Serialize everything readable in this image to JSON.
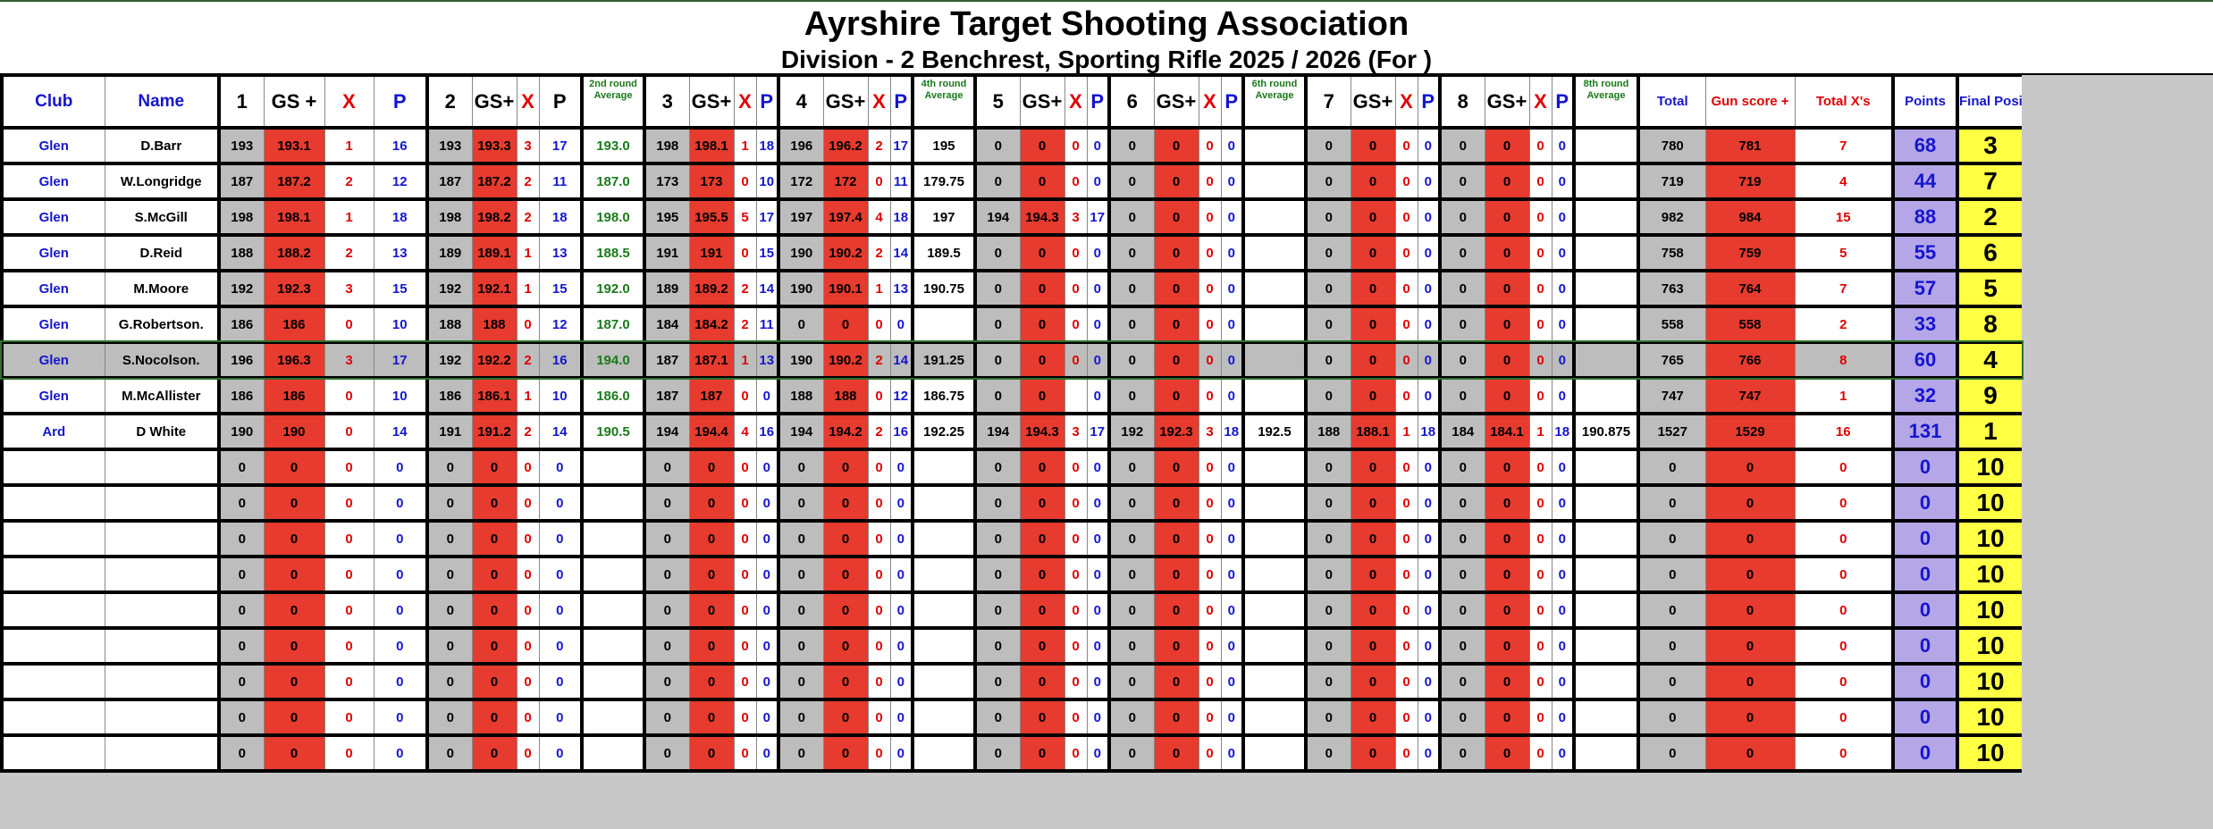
{
  "title": "Ayrshire Target Shooting Association",
  "subtitle": "Division - 2  Benchrest,  Sporting Rifle  2025 / 2026   (For   )",
  "headers": {
    "club": "Club",
    "name": "Name",
    "r1": "1",
    "gs1": "GS +",
    "x1": "X",
    "p1": "P",
    "r2": "2",
    "gs2": "GS+",
    "x2": "X",
    "p2": "P",
    "avg2": "2nd round Average",
    "r3": "3",
    "gs3": "GS+",
    "x3": "X",
    "p3": "P",
    "r4": "4",
    "gs4": "GS+",
    "x4": "X",
    "p4": "P",
    "avg4": "4th round Average",
    "r5": "5",
    "gs5": "GS+",
    "x5": "X",
    "p5": "P",
    "r6": "6",
    "gs6": "GS+",
    "x6": "X",
    "p6": "P",
    "avg6": "6th round Average",
    "r7": "7",
    "gs7": "GS+",
    "x7": "X",
    "p7": "P",
    "r8": "8",
    "gs8": "GS+",
    "x8": "X",
    "p8": "P",
    "avg8": "8th round Average",
    "total": "Total",
    "gun": "Gun score +",
    "totx": "Total X's",
    "points": "Points",
    "final": "Final Position"
  },
  "rows": [
    [
      "Glen",
      "D.Barr",
      "193",
      "193.1",
      "1",
      "16",
      "193",
      "193.3",
      "3",
      "17",
      "193.0",
      "198",
      "198.1",
      "1",
      "18",
      "196",
      "196.2",
      "2",
      "17",
      "195",
      "0",
      "0",
      "0",
      "0",
      "0",
      "0",
      "0",
      "0",
      "",
      "0",
      "0",
      "0",
      "0",
      "0",
      "0",
      "0",
      "0",
      "",
      "780",
      "781",
      "7",
      "68",
      "3"
    ],
    [
      "Glen",
      "W.Longridge",
      "187",
      "187.2",
      "2",
      "12",
      "187",
      "187.2",
      "2",
      "11",
      "187.0",
      "173",
      "173",
      "0",
      "10",
      "172",
      "172",
      "0",
      "11",
      "179.75",
      "0",
      "0",
      "0",
      "0",
      "0",
      "0",
      "0",
      "0",
      "",
      "0",
      "0",
      "0",
      "0",
      "0",
      "0",
      "0",
      "0",
      "",
      "719",
      "719",
      "4",
      "44",
      "7"
    ],
    [
      "Glen",
      "S.McGill",
      "198",
      "198.1",
      "1",
      "18",
      "198",
      "198.2",
      "2",
      "18",
      "198.0",
      "195",
      "195.5",
      "5",
      "17",
      "197",
      "197.4",
      "4",
      "18",
      "197",
      "194",
      "194.3",
      "3",
      "17",
      "0",
      "0",
      "0",
      "0",
      "",
      "0",
      "0",
      "0",
      "0",
      "0",
      "0",
      "0",
      "0",
      "",
      "982",
      "984",
      "15",
      "88",
      "2"
    ],
    [
      "Glen",
      "D.Reid",
      "188",
      "188.2",
      "2",
      "13",
      "189",
      "189.1",
      "1",
      "13",
      "188.5",
      "191",
      "191",
      "0",
      "15",
      "190",
      "190.2",
      "2",
      "14",
      "189.5",
      "0",
      "0",
      "0",
      "0",
      "0",
      "0",
      "0",
      "0",
      "",
      "0",
      "0",
      "0",
      "0",
      "0",
      "0",
      "0",
      "0",
      "",
      "758",
      "759",
      "5",
      "55",
      "6"
    ],
    [
      "Glen",
      "M.Moore",
      "192",
      "192.3",
      "3",
      "15",
      "192",
      "192.1",
      "1",
      "15",
      "192.0",
      "189",
      "189.2",
      "2",
      "14",
      "190",
      "190.1",
      "1",
      "13",
      "190.75",
      "0",
      "0",
      "0",
      "0",
      "0",
      "0",
      "0",
      "0",
      "",
      "0",
      "0",
      "0",
      "0",
      "0",
      "0",
      "0",
      "0",
      "",
      "763",
      "764",
      "7",
      "57",
      "5"
    ],
    [
      "Glen",
      "G.Robertson.",
      "186",
      "186",
      "0",
      "10",
      "188",
      "188",
      "0",
      "12",
      "187.0",
      "184",
      "184.2",
      "2",
      "11",
      "0",
      "0",
      "0",
      "0",
      "",
      "0",
      "0",
      "0",
      "0",
      "0",
      "0",
      "0",
      "0",
      "",
      "0",
      "0",
      "0",
      "0",
      "0",
      "0",
      "0",
      "0",
      "",
      "558",
      "558",
      "2",
      "33",
      "8"
    ],
    [
      "Glen",
      "S.Nocolson.",
      "196",
      "196.3",
      "3",
      "17",
      "192",
      "192.2",
      "2",
      "16",
      "194.0",
      "187",
      "187.1",
      "1",
      "13",
      "190",
      "190.2",
      "2",
      "14",
      "191.25",
      "0",
      "0",
      "0",
      "0",
      "0",
      "0",
      "0",
      "0",
      "",
      "0",
      "0",
      "0",
      "0",
      "0",
      "0",
      "0",
      "0",
      "",
      "765",
      "766",
      "8",
      "60",
      "4"
    ],
    [
      "Glen",
      "M.McAllister",
      "186",
      "186",
      "0",
      "10",
      "186",
      "186.1",
      "1",
      "10",
      "186.0",
      "187",
      "187",
      "0",
      "0",
      "188",
      "188",
      "0",
      "12",
      "186.75",
      "0",
      "0",
      "",
      "0",
      "0",
      "0",
      "0",
      "0",
      "",
      "0",
      "0",
      "0",
      "0",
      "0",
      "0",
      "0",
      "0",
      "",
      "747",
      "747",
      "1",
      "32",
      "9"
    ],
    [
      "Ard",
      "D White",
      "190",
      "190",
      "0",
      "14",
      "191",
      "191.2",
      "2",
      "14",
      "190.5",
      "194",
      "194.4",
      "4",
      "16",
      "194",
      "194.2",
      "2",
      "16",
      "192.25",
      "194",
      "194.3",
      "3",
      "17",
      "192",
      "192.3",
      "3",
      "18",
      "192.5",
      "188",
      "188.1",
      "1",
      "18",
      "184",
      "184.1",
      "1",
      "18",
      "190.875",
      "1527",
      "1529",
      "16",
      "131",
      "1"
    ],
    [
      "",
      "",
      "0",
      "0",
      "0",
      "0",
      "0",
      "0",
      "0",
      "0",
      "",
      "0",
      "0",
      "0",
      "0",
      "0",
      "0",
      "0",
      "0",
      "",
      "0",
      "0",
      "0",
      "0",
      "0",
      "0",
      "0",
      "0",
      "",
      "0",
      "0",
      "0",
      "0",
      "0",
      "0",
      "0",
      "0",
      "",
      "0",
      "0",
      "0",
      "0",
      "10"
    ],
    [
      "",
      "",
      "0",
      "0",
      "0",
      "0",
      "0",
      "0",
      "0",
      "0",
      "",
      "0",
      "0",
      "0",
      "0",
      "0",
      "0",
      "0",
      "0",
      "",
      "0",
      "0",
      "0",
      "0",
      "0",
      "0",
      "0",
      "0",
      "",
      "0",
      "0",
      "0",
      "0",
      "0",
      "0",
      "0",
      "0",
      "",
      "0",
      "0",
      "0",
      "0",
      "10"
    ],
    [
      "",
      "",
      "0",
      "0",
      "0",
      "0",
      "0",
      "0",
      "0",
      "0",
      "",
      "0",
      "0",
      "0",
      "0",
      "0",
      "0",
      "0",
      "0",
      "",
      "0",
      "0",
      "0",
      "0",
      "0",
      "0",
      "0",
      "0",
      "",
      "0",
      "0",
      "0",
      "0",
      "0",
      "0",
      "0",
      "0",
      "",
      "0",
      "0",
      "0",
      "0",
      "10"
    ],
    [
      "",
      "",
      "0",
      "0",
      "0",
      "0",
      "0",
      "0",
      "0",
      "0",
      "",
      "0",
      "0",
      "0",
      "0",
      "0",
      "0",
      "0",
      "0",
      "",
      "0",
      "0",
      "0",
      "0",
      "0",
      "0",
      "0",
      "0",
      "",
      "0",
      "0",
      "0",
      "0",
      "0",
      "0",
      "0",
      "0",
      "",
      "0",
      "0",
      "0",
      "0",
      "10"
    ],
    [
      "",
      "",
      "0",
      "0",
      "0",
      "0",
      "0",
      "0",
      "0",
      "0",
      "",
      "0",
      "0",
      "0",
      "0",
      "0",
      "0",
      "0",
      "0",
      "",
      "0",
      "0",
      "0",
      "0",
      "0",
      "0",
      "0",
      "0",
      "",
      "0",
      "0",
      "0",
      "0",
      "0",
      "0",
      "0",
      "0",
      "",
      "0",
      "0",
      "0",
      "0",
      "10"
    ],
    [
      "",
      "",
      "0",
      "0",
      "0",
      "0",
      "0",
      "0",
      "0",
      "0",
      "",
      "0",
      "0",
      "0",
      "0",
      "0",
      "0",
      "0",
      "0",
      "",
      "0",
      "0",
      "0",
      "0",
      "0",
      "0",
      "0",
      "0",
      "",
      "0",
      "0",
      "0",
      "0",
      "0",
      "0",
      "0",
      "0",
      "",
      "0",
      "0",
      "0",
      "0",
      "10"
    ],
    [
      "",
      "",
      "0",
      "0",
      "0",
      "0",
      "0",
      "0",
      "0",
      "0",
      "",
      "0",
      "0",
      "0",
      "0",
      "0",
      "0",
      "0",
      "0",
      "",
      "0",
      "0",
      "0",
      "0",
      "0",
      "0",
      "0",
      "0",
      "",
      "0",
      "0",
      "0",
      "0",
      "0",
      "0",
      "0",
      "0",
      "",
      "0",
      "0",
      "0",
      "0",
      "10"
    ],
    [
      "",
      "",
      "0",
      "0",
      "0",
      "0",
      "0",
      "0",
      "0",
      "0",
      "",
      "0",
      "0",
      "0",
      "0",
      "0",
      "0",
      "0",
      "0",
      "",
      "0",
      "0",
      "0",
      "0",
      "0",
      "0",
      "0",
      "0",
      "",
      "0",
      "0",
      "0",
      "0",
      "0",
      "0",
      "0",
      "0",
      "",
      "0",
      "0",
      "0",
      "0",
      "10"
    ],
    [
      "",
      "",
      "0",
      "0",
      "0",
      "0",
      "0",
      "0",
      "0",
      "0",
      "",
      "0",
      "0",
      "0",
      "0",
      "0",
      "0",
      "0",
      "0",
      "",
      "0",
      "0",
      "0",
      "0",
      "0",
      "0",
      "0",
      "0",
      "",
      "0",
      "0",
      "0",
      "0",
      "0",
      "0",
      "0",
      "0",
      "",
      "0",
      "0",
      "0",
      "0",
      "10"
    ]
  ],
  "highlight_row": 6,
  "colors": {
    "score_grey": "#bdbdbd",
    "gs_red": "#e63b2e",
    "points_lavender": "#b5a6e8",
    "position_yellow": "#ffff44",
    "club_blue": "#1515d0",
    "avg_green": "#1a7a1a",
    "x_red": "#e00000"
  }
}
